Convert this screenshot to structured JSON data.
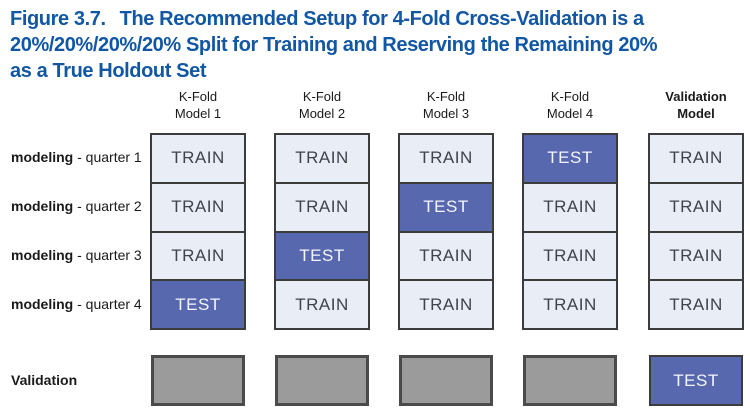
{
  "figure": {
    "label": "Figure 3.7.",
    "title_lines": [
      "The Recommended Setup for 4-Fold Cross-Validation is a",
      "20%/20%/20%/20% Split for Training and Reserving the Remaining 20%",
      "as a True Holdout Set"
    ]
  },
  "colors": {
    "title_blue": "#1257a4",
    "train_fill": "#e9edf6",
    "train_text": "#3f434b",
    "test_fill": "#5868af",
    "test_text": "#f4f6fb",
    "holdout_fill": "#9b9b9b",
    "holdout_border": "#4a4a4a",
    "cell_border": "#3c3c3c",
    "label_text": "#1a1a1a"
  },
  "row_labels": [
    {
      "bold": "modeling",
      "rest": " - quarter 1"
    },
    {
      "bold": "modeling",
      "rest": " - quarter 2"
    },
    {
      "bold": "modeling",
      "rest": " - quarter 3"
    },
    {
      "bold": "modeling",
      "rest": " - quarter 4"
    }
  ],
  "validation_row_label": "Validation",
  "columns": [
    {
      "header_line1": "K-Fold",
      "header_line2": "Model 1",
      "header_bold": false,
      "cells": [
        "TRAIN",
        "TRAIN",
        "TRAIN",
        "TEST"
      ],
      "validation": ""
    },
    {
      "header_line1": "K-Fold",
      "header_line2": "Model 2",
      "header_bold": false,
      "cells": [
        "TRAIN",
        "TRAIN",
        "TEST",
        "TRAIN"
      ],
      "validation": ""
    },
    {
      "header_line1": "K-Fold",
      "header_line2": "Model 3",
      "header_bold": false,
      "cells": [
        "TRAIN",
        "TEST",
        "TRAIN",
        "TRAIN"
      ],
      "validation": ""
    },
    {
      "header_line1": "K-Fold",
      "header_line2": "Model 4",
      "header_bold": false,
      "cells": [
        "TEST",
        "TRAIN",
        "TRAIN",
        "TRAIN"
      ],
      "validation": ""
    },
    {
      "header_line1": "Validation",
      "header_line2": "Model",
      "header_bold": true,
      "cells": [
        "TRAIN",
        "TRAIN",
        "TRAIN",
        "TRAIN"
      ],
      "validation": "TEST"
    }
  ]
}
